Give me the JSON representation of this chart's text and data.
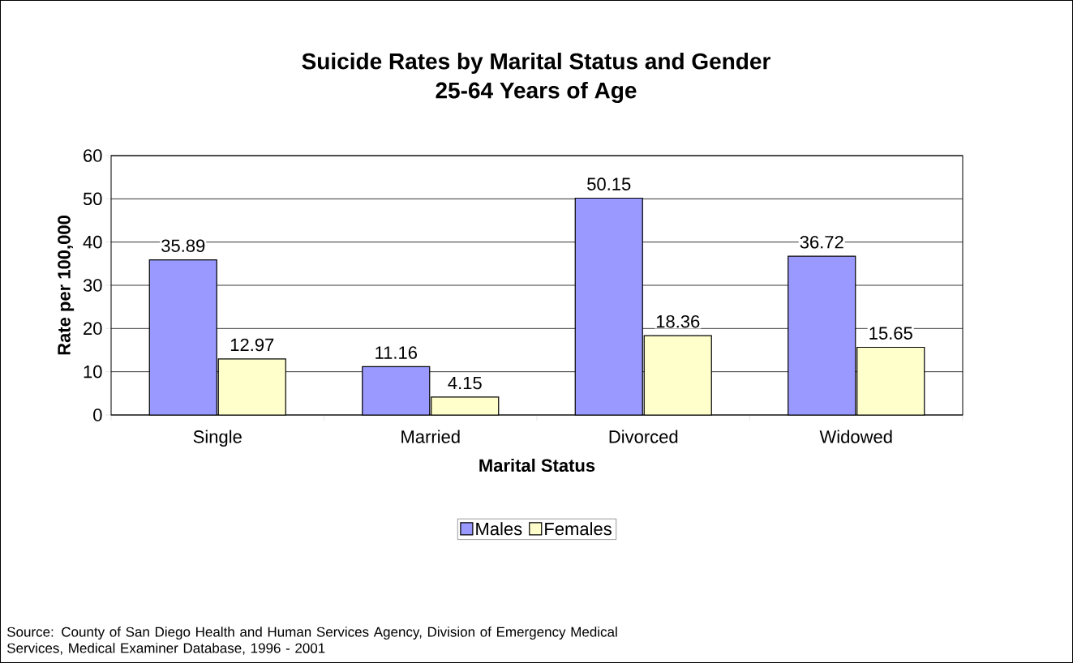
{
  "chart_data": {
    "type": "bar",
    "title": "Suicide Rates by Marital Status and Gender",
    "subtitle": "25-64 Years of Age",
    "xlabel": "Marital Status",
    "ylabel": "Rate per 100,000",
    "categories": [
      "Single",
      "Married",
      "Divorced",
      "Widowed"
    ],
    "series": [
      {
        "name": "Males",
        "color": "#9999ff",
        "values": [
          35.89,
          11.16,
          50.15,
          36.72
        ]
      },
      {
        "name": "Females",
        "color": "#ffffcc",
        "values": [
          12.97,
          4.15,
          18.36,
          15.65
        ]
      }
    ],
    "ylim": [
      0,
      60
    ],
    "yticks": [
      0,
      10,
      20,
      30,
      40,
      50,
      60
    ],
    "grid": "y",
    "legend": "bottom",
    "data_labels": true,
    "annotations": [
      "Source: County of San Diego Health and Human Services Agency, Division of Emergency Medical Services, Medical Examiner Database, 1996 - 2001"
    ]
  }
}
